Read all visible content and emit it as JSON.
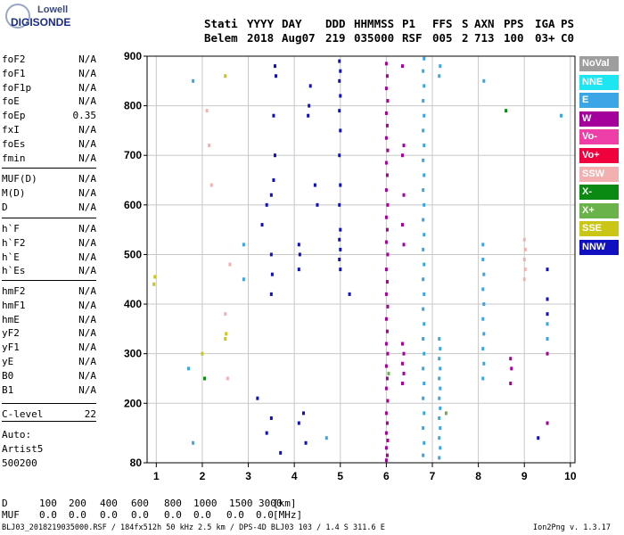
{
  "logo": {
    "line1": "Lowell",
    "line2": "DIGISONDE"
  },
  "header": {
    "labels": [
      "Stati",
      "YYYY",
      "DAY",
      "DDD",
      "HHMMSS",
      "P1",
      "FFS",
      "S",
      "AXN",
      "PPS",
      "IGA",
      "PS"
    ],
    "values": [
      "Belem",
      "2018",
      "Aug07",
      "219",
      "035000",
      "RSF",
      "005",
      "2",
      "713",
      "100",
      "03+",
      "C0"
    ]
  },
  "params_group1": [
    {
      "name": "foF2",
      "value": "N/A"
    },
    {
      "name": "foF1",
      "value": "N/A"
    },
    {
      "name": "foF1p",
      "value": "N/A"
    },
    {
      "name": "foE",
      "value": "N/A"
    },
    {
      "name": "foEp",
      "value": "0.35"
    },
    {
      "name": "fxI",
      "value": "N/A"
    },
    {
      "name": "foEs",
      "value": "N/A"
    },
    {
      "name": "fmin",
      "value": "N/A"
    }
  ],
  "params_group2": [
    {
      "name": "MUF(D)",
      "value": "N/A"
    },
    {
      "name": "M(D)",
      "value": "N/A"
    },
    {
      "name": "D",
      "value": "N/A"
    }
  ],
  "params_group3": [
    {
      "name": "h`F",
      "value": "N/A"
    },
    {
      "name": "h`F2",
      "value": "N/A"
    },
    {
      "name": "h`E",
      "value": "N/A"
    },
    {
      "name": "h`Es",
      "value": "N/A"
    }
  ],
  "params_group4": [
    {
      "name": "hmF2",
      "value": "N/A"
    },
    {
      "name": "hmF1",
      "value": "N/A"
    },
    {
      "name": "hmE",
      "value": "N/A"
    },
    {
      "name": "yF2",
      "value": "N/A"
    },
    {
      "name": "yF1",
      "value": "N/A"
    },
    {
      "name": "yE",
      "value": "N/A"
    },
    {
      "name": "B0",
      "value": "N/A"
    },
    {
      "name": "B1",
      "value": "N/A"
    }
  ],
  "clevel": {
    "name": "C-level",
    "value": "22"
  },
  "auto": [
    "Auto:",
    "Artist5",
    "500200"
  ],
  "legend": [
    {
      "label": "NoVal",
      "color": "#9e9e9e"
    },
    {
      "label": "NNE",
      "color": "#1ee6f0"
    },
    {
      "label": "E",
      "color": "#3aa6e6"
    },
    {
      "label": "W",
      "color": "#a4009c"
    },
    {
      "label": "Vo-",
      "color": "#ee3ea8"
    },
    {
      "label": "Vo+",
      "color": "#f0003c"
    },
    {
      "label": "SSW",
      "color": "#f2b0b0"
    },
    {
      "label": "X-",
      "color": "#0a8a12"
    },
    {
      "label": "X+",
      "color": "#6ab24a"
    },
    {
      "label": "SSE",
      "color": "#c9c617"
    },
    {
      "label": "NNW",
      "color": "#1010c0"
    }
  ],
  "footer": {
    "d_label": "D",
    "d_values": [
      "100",
      "200",
      "400",
      "600",
      "800",
      "1000",
      "1500",
      "3000"
    ],
    "d_unit": "[km]",
    "muf_label": "MUF",
    "muf_values": [
      "0.0",
      "0.0",
      "0.0",
      "0.0",
      "0.0",
      "0.0",
      "0.0",
      "0.0"
    ],
    "muf_unit": "[MHz]",
    "file_line": "BLJ03_2018219035000.RSF / 184fx512h 50 kHz 2.5 km / DPS-4D BLJ03 103 / 1.4 S 311.6 E",
    "version": "Ion2Png v. 1.3.17"
  },
  "chart_data": {
    "type": "scatter",
    "title": "",
    "xlabel": "",
    "ylabel": "",
    "xlim": [
      0.8,
      10.1
    ],
    "ylim": [
      80,
      900
    ],
    "x_ticks": [
      "1",
      "2",
      "3",
      "4",
      "5",
      "6",
      "7",
      "8",
      "9",
      "10"
    ],
    "y_ticks": [
      "80",
      "200",
      "300",
      "400",
      "500",
      "600",
      "700",
      "800",
      "900"
    ],
    "grid": true,
    "series": [
      {
        "name": "W",
        "color": "#a4009c",
        "points": [
          [
            6.0,
            85
          ],
          [
            6.02,
            95
          ],
          [
            6.0,
            110
          ],
          [
            6.03,
            125
          ],
          [
            6.0,
            140
          ],
          [
            6.02,
            160
          ],
          [
            6.0,
            180
          ],
          [
            6.03,
            205
          ],
          [
            6.0,
            230
          ],
          [
            6.02,
            250
          ],
          [
            6.0,
            275
          ],
          [
            6.03,
            300
          ],
          [
            6.0,
            320
          ],
          [
            6.02,
            345
          ],
          [
            6.0,
            370
          ],
          [
            6.03,
            395
          ],
          [
            6.0,
            420
          ],
          [
            6.02,
            445
          ],
          [
            6.0,
            470
          ],
          [
            6.03,
            500
          ],
          [
            6.0,
            525
          ],
          [
            6.02,
            550
          ],
          [
            6.0,
            575
          ],
          [
            6.03,
            600
          ],
          [
            6.0,
            630
          ],
          [
            6.02,
            660
          ],
          [
            6.0,
            685
          ],
          [
            6.03,
            710
          ],
          [
            6.0,
            735
          ],
          [
            6.02,
            760
          ],
          [
            6.0,
            785
          ],
          [
            6.03,
            810
          ],
          [
            6.0,
            835
          ],
          [
            6.02,
            860
          ],
          [
            6.0,
            885
          ],
          [
            6.35,
            240
          ],
          [
            6.38,
            260
          ],
          [
            6.35,
            280
          ],
          [
            6.38,
            300
          ],
          [
            6.35,
            320
          ],
          [
            6.38,
            520
          ],
          [
            6.35,
            560
          ],
          [
            6.38,
            620
          ],
          [
            6.35,
            700
          ],
          [
            6.38,
            720
          ],
          [
            6.35,
            880
          ],
          [
            8.7,
            240
          ],
          [
            8.72,
            270
          ],
          [
            8.7,
            290
          ],
          [
            9.5,
            160
          ],
          [
            9.5,
            300
          ]
        ]
      },
      {
        "name": "E",
        "color": "#3aa6e6",
        "points": [
          [
            6.8,
            95
          ],
          [
            6.82,
            120
          ],
          [
            6.8,
            150
          ],
          [
            6.82,
            180
          ],
          [
            6.8,
            210
          ],
          [
            6.82,
            240
          ],
          [
            6.8,
            270
          ],
          [
            6.82,
            300
          ],
          [
            6.8,
            330
          ],
          [
            6.82,
            360
          ],
          [
            6.8,
            390
          ],
          [
            6.82,
            420
          ],
          [
            6.8,
            450
          ],
          [
            6.82,
            480
          ],
          [
            6.8,
            510
          ],
          [
            6.82,
            540
          ],
          [
            6.8,
            570
          ],
          [
            6.82,
            600
          ],
          [
            6.8,
            630
          ],
          [
            6.82,
            660
          ],
          [
            6.8,
            690
          ],
          [
            6.82,
            720
          ],
          [
            6.8,
            750
          ],
          [
            6.82,
            780
          ],
          [
            6.8,
            810
          ],
          [
            6.82,
            840
          ],
          [
            6.8,
            870
          ],
          [
            6.82,
            895
          ],
          [
            7.15,
            90
          ],
          [
            7.17,
            110
          ],
          [
            7.15,
            130
          ],
          [
            7.17,
            150
          ],
          [
            7.15,
            170
          ],
          [
            7.17,
            190
          ],
          [
            7.15,
            210
          ],
          [
            7.17,
            230
          ],
          [
            7.15,
            250
          ],
          [
            7.17,
            270
          ],
          [
            7.15,
            290
          ],
          [
            7.17,
            310
          ],
          [
            7.15,
            330
          ],
          [
            7.15,
            860
          ],
          [
            7.17,
            880
          ],
          [
            8.1,
            250
          ],
          [
            8.12,
            280
          ],
          [
            8.1,
            310
          ],
          [
            8.12,
            340
          ],
          [
            8.1,
            370
          ],
          [
            8.12,
            400
          ],
          [
            8.1,
            430
          ],
          [
            8.12,
            460
          ],
          [
            8.1,
            490
          ],
          [
            8.1,
            520
          ],
          [
            8.12,
            850
          ],
          [
            1.7,
            270
          ],
          [
            1.8,
            120
          ],
          [
            1.8,
            850
          ],
          [
            2.9,
            450
          ],
          [
            2.9,
            520
          ],
          [
            4.7,
            130
          ],
          [
            9.5,
            330
          ],
          [
            9.5,
            360
          ],
          [
            9.8,
            780
          ]
        ]
      },
      {
        "name": "NNW",
        "color": "#1010c0",
        "points": [
          [
            5.0,
            470
          ],
          [
            4.98,
            490
          ],
          [
            5.0,
            510
          ],
          [
            4.98,
            530
          ],
          [
            5.0,
            550
          ],
          [
            4.98,
            600
          ],
          [
            5.0,
            640
          ],
          [
            4.98,
            700
          ],
          [
            5.0,
            750
          ],
          [
            4.98,
            790
          ],
          [
            5.0,
            820
          ],
          [
            4.98,
            850
          ],
          [
            5.0,
            870
          ],
          [
            4.98,
            890
          ],
          [
            3.5,
            420
          ],
          [
            3.52,
            460
          ],
          [
            3.5,
            500
          ],
          [
            3.55,
            650
          ],
          [
            3.58,
            700
          ],
          [
            3.55,
            780
          ],
          [
            3.6,
            860
          ],
          [
            3.58,
            880
          ],
          [
            4.1,
            470
          ],
          [
            4.12,
            500
          ],
          [
            4.1,
            520
          ],
          [
            4.3,
            780
          ],
          [
            4.32,
            800
          ],
          [
            4.35,
            840
          ],
          [
            3.2,
            210
          ],
          [
            3.4,
            140
          ],
          [
            3.5,
            170
          ],
          [
            3.7,
            100
          ],
          [
            4.1,
            160
          ],
          [
            4.2,
            180
          ],
          [
            4.25,
            120
          ],
          [
            3.3,
            560
          ],
          [
            3.4,
            600
          ],
          [
            3.5,
            620
          ],
          [
            4.5,
            600
          ],
          [
            4.45,
            640
          ],
          [
            5.2,
            420
          ],
          [
            9.5,
            410
          ],
          [
            9.5,
            470
          ],
          [
            9.5,
            380
          ],
          [
            9.3,
            130
          ]
        ]
      },
      {
        "name": "SSW",
        "color": "#f2b0b0",
        "points": [
          [
            9.0,
            450
          ],
          [
            9.02,
            470
          ],
          [
            9.0,
            490
          ],
          [
            9.02,
            510
          ],
          [
            9.0,
            530
          ],
          [
            2.6,
            480
          ],
          [
            2.2,
            640
          ],
          [
            2.1,
            790
          ],
          [
            2.15,
            720
          ],
          [
            2.5,
            380
          ],
          [
            2.55,
            250
          ]
        ]
      },
      {
        "name": "SSE",
        "color": "#c9c617",
        "points": [
          [
            0.95,
            440
          ],
          [
            0.97,
            455
          ],
          [
            2.5,
            330
          ],
          [
            2.52,
            340
          ],
          [
            2.5,
            860
          ],
          [
            2.0,
            300
          ]
        ]
      },
      {
        "name": "X-",
        "color": "#0a8a12",
        "points": [
          [
            2.05,
            250
          ],
          [
            8.6,
            790
          ]
        ]
      },
      {
        "name": "X+",
        "color": "#6ab24a",
        "points": [
          [
            6.05,
            260
          ],
          [
            7.3,
            180
          ]
        ]
      }
    ]
  }
}
